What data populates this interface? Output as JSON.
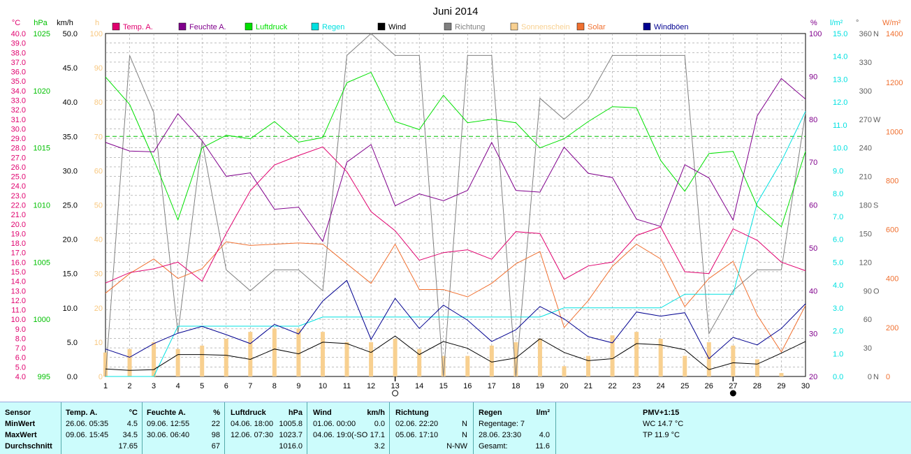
{
  "chart_data": {
    "type": "line",
    "title": "Juni 2014",
    "days": [
      1,
      2,
      3,
      4,
      5,
      6,
      7,
      8,
      9,
      10,
      11,
      12,
      13,
      14,
      15,
      16,
      17,
      18,
      19,
      20,
      21,
      22,
      23,
      24,
      25,
      26,
      27,
      28,
      29,
      30
    ],
    "legend": [
      {
        "label": "Temp. A.",
        "color": "#e0006e"
      },
      {
        "label": "Feuchte A.",
        "color": "#80008c"
      },
      {
        "label": "Luftdruck",
        "color": "#00e000"
      },
      {
        "label": "Regen",
        "color": "#00e0e0"
      },
      {
        "label": "Wind",
        "color": "#000000"
      },
      {
        "label": "Richtung",
        "color": "#808080"
      },
      {
        "label": "Sonnenschein",
        "color": "#f8d090"
      },
      {
        "label": "Solar",
        "color": "#f07030"
      },
      {
        "label": "Windböen",
        "color": "#000090"
      }
    ],
    "axes": {
      "temp": {
        "unit": "°C",
        "min": 4,
        "max": 40,
        "color": "#e0006e"
      },
      "pressure": {
        "unit": "hPa",
        "min": 995,
        "max": 1025,
        "color": "#00c000"
      },
      "wind": {
        "unit": "km/h",
        "min": 0,
        "max": 50,
        "color": "#000000"
      },
      "sun": {
        "unit": "h",
        "min": 0,
        "max": 100,
        "color": "#f8c880"
      },
      "humidity": {
        "unit": "%",
        "min": 20,
        "max": 100,
        "color": "#80008c"
      },
      "rain": {
        "unit": "l/m²",
        "min": 0,
        "max": 15,
        "color": "#00e0e0"
      },
      "direction": {
        "unit": "°",
        "min": 0,
        "max": 360,
        "color": "#606060",
        "compass": {
          "0": "N",
          "90": "O",
          "180": "S",
          "270": "W",
          "360": "N"
        }
      },
      "solar": {
        "unit": "W/m²",
        "min": 0,
        "max": 1400,
        "color": "#f07030"
      }
    },
    "series": [
      {
        "name": "Temp. A.",
        "axis": "temp",
        "values": [
          13.8,
          14.9,
          15.3,
          16.0,
          14.0,
          19.0,
          23.5,
          26.2,
          27.2,
          28.1,
          25.5,
          21.3,
          19.3,
          16.2,
          17.0,
          17.3,
          16.3,
          19.2,
          19.0,
          14.2,
          15.6,
          16.0,
          18.8,
          19.7,
          15.0,
          14.8,
          19.5,
          18.3,
          16.0,
          15.1
        ]
      },
      {
        "name": "Feuchte A.",
        "axis": "humidity",
        "values": [
          74.6,
          72.6,
          72.4,
          81.3,
          75.0,
          66.7,
          67.5,
          59.0,
          59.5,
          51.5,
          70.0,
          74.1,
          59.8,
          62.6,
          61.0,
          63.4,
          74.6,
          63.4,
          63.0,
          73.5,
          67.4,
          66.4,
          56.7,
          55.0,
          69.4,
          66.3,
          56.5,
          80.8,
          89.5,
          84.7
        ]
      },
      {
        "name": "Luftdruck",
        "axis": "pressure",
        "values": [
          1021.2,
          1018.8,
          1014.0,
          1008.7,
          1015.0,
          1016.1,
          1015.8,
          1017.3,
          1015.5,
          1015.9,
          1020.7,
          1021.6,
          1017.3,
          1016.6,
          1019.6,
          1017.2,
          1017.5,
          1017.2,
          1015.0,
          1015.8,
          1017.3,
          1018.6,
          1018.5,
          1013.9,
          1011.2,
          1014.5,
          1014.7,
          1009.9,
          1008.1,
          1014.7
        ]
      },
      {
        "name": "Regen",
        "axis": "rain",
        "values": [
          0,
          0,
          0,
          2.2,
          2.2,
          2.2,
          2.2,
          2.2,
          2.2,
          2.6,
          2.6,
          2.6,
          2.6,
          2.6,
          2.6,
          2.6,
          2.6,
          2.6,
          2.6,
          3.0,
          3.0,
          3.0,
          3.0,
          3.0,
          3.6,
          3.6,
          3.6,
          7.6,
          9.4,
          11.6
        ]
      },
      {
        "name": "Wind",
        "axis": "wind",
        "values": [
          1.1,
          0.9,
          1.0,
          3.2,
          3.2,
          3.1,
          2.5,
          4.0,
          3.3,
          5.0,
          4.8,
          3.5,
          5.9,
          3.2,
          5.1,
          4.1,
          2.1,
          2.7,
          5.5,
          3.5,
          2.3,
          2.6,
          4.8,
          4.6,
          3.9,
          1.0,
          2.0,
          1.8,
          3.4,
          5.1
        ]
      },
      {
        "name": "Richtung",
        "axis": "direction",
        "values": [
          0,
          337,
          277,
          45,
          247,
          112,
          90,
          112,
          112,
          90,
          337,
          360,
          337,
          337,
          0,
          337,
          337,
          0,
          292,
          270,
          292,
          337,
          337,
          337,
          337,
          45,
          90,
          112,
          112,
          277
        ]
      },
      {
        "name": "Sonnenschein",
        "axis": "sun",
        "kind": "bar",
        "values": [
          7,
          8,
          10,
          8,
          9,
          11,
          13,
          14,
          14,
          13,
          10,
          10,
          11,
          8,
          6,
          6,
          9,
          10,
          11,
          3,
          6,
          12,
          13,
          11,
          6,
          10,
          9,
          5,
          1,
          0
        ]
      },
      {
        "name": "Solar",
        "axis": "solar",
        "values": [
          340,
          420,
          480,
          400,
          440,
          550,
          535,
          540,
          545,
          540,
          460,
          380,
          540,
          355,
          355,
          325,
          380,
          460,
          510,
          200,
          310,
          450,
          540,
          480,
          285,
          400,
          470,
          250,
          100,
          290
        ]
      },
      {
        "name": "Windböen",
        "axis": "wind",
        "values": [
          4.0,
          2.8,
          4.8,
          6.3,
          7.3,
          6.1,
          4.8,
          7.6,
          6.2,
          11.0,
          14.0,
          5.4,
          11.4,
          7.0,
          10.4,
          8.2,
          5.1,
          6.8,
          10.2,
          8.4,
          5.8,
          4.9,
          9.4,
          8.8,
          9.3,
          2.6,
          5.7,
          4.6,
          7.0,
          10.6
        ]
      }
    ],
    "moon": [
      {
        "day": 13,
        "phase": "full"
      },
      {
        "day": 27,
        "phase": "new"
      }
    ]
  },
  "stats": {
    "header": {
      "sensor": "Sensor",
      "temp": "Temp. A.",
      "temp_unit": "°C",
      "hum": "Feuchte A.",
      "hum_unit": "%",
      "press": "Luftdruck",
      "press_unit": "hPa",
      "wind": "Wind",
      "wind_unit": "km/h",
      "dir": "Richtung",
      "rain": "Regen",
      "rain_unit": "l/m²",
      "pmv": "PMV+1:15"
    },
    "rows": [
      {
        "label": "MinWert",
        "temp_t": "26.06.  05:35",
        "temp_v": "4.5",
        "hum_t": "09.06.  12:55",
        "hum_v": "22",
        "press_t": "04.06.  18:00",
        "press_v": "1005.8",
        "wind_t": "01.06.  00:00",
        "wind_v": "0.0",
        "dir_t": "02.06.  22:20",
        "dir_v": "N",
        "rain_t": "Regentage: 7",
        "rain_v": "",
        "extra": "WC 14.7 °C"
      },
      {
        "label": "MaxWert",
        "temp_t": "09.06.  15:45",
        "temp_v": "34.5",
        "hum_t": "30.06.  06:40",
        "hum_v": "98",
        "press_t": "12.06.  07:30",
        "press_v": "1023.7",
        "wind_t": "04.06.  19:0(-SO",
        "wind_v": "17.1",
        "dir_t": "05.06.  17:10",
        "dir_v": "N",
        "rain_t": "28.06.  23:30",
        "rain_v": "4.0",
        "extra": "TP 11.9 °C"
      },
      {
        "label": "Durchschnitt",
        "temp_t": "",
        "temp_v": "17.65",
        "hum_t": "",
        "hum_v": "67",
        "press_t": "",
        "press_v": "1016.0",
        "wind_t": "",
        "wind_v": "3.2",
        "dir_t": "",
        "dir_v": "N-NW",
        "rain_t": "Gesamt:",
        "rain_v": "11.6",
        "extra": ""
      }
    ]
  }
}
